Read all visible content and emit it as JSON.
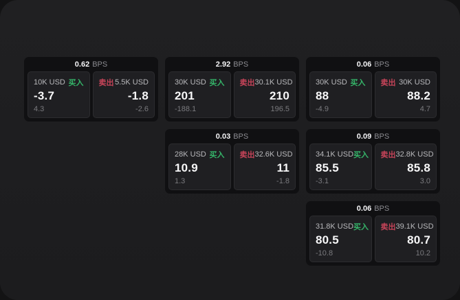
{
  "labels": {
    "bps_unit": "BPS",
    "buy": "买入",
    "sell": "卖出"
  },
  "colors": {
    "buy_green": "#35b469",
    "sell_red": "#c74459",
    "window_bg": "#1e1e20",
    "card_bg": "#101012",
    "panel_bg": "#1f1f22",
    "value_white": "#f7f7f8",
    "muted_gray": "#7a7a7e"
  },
  "cards": [
    {
      "bps": "0.62",
      "buy": {
        "amount": "10K USD",
        "value": "-3.7",
        "sub": "4.3"
      },
      "sell": {
        "amount": "5.5K USD",
        "value": "-1.8",
        "sub": "-2.6"
      }
    },
    {
      "bps": "2.92",
      "buy": {
        "amount": "30K USD",
        "value": "201",
        "sub": "-188.1"
      },
      "sell": {
        "amount": "30.1K USD",
        "value": "210",
        "sub": "196.5"
      }
    },
    {
      "bps": "0.03",
      "buy": {
        "amount": "28K USD",
        "value": "10.9",
        "sub": "1.3"
      },
      "sell": {
        "amount": "32.6K USD",
        "value": "11",
        "sub": "-1.8"
      }
    },
    {
      "bps": "0.06",
      "buy": {
        "amount": "30K USD",
        "value": "88",
        "sub": "-4.9"
      },
      "sell": {
        "amount": "30K USD",
        "value": "88.2",
        "sub": "4.7"
      }
    },
    {
      "bps": "0.09",
      "buy": {
        "amount": "34.1K USD",
        "value": "85.5",
        "sub": "-3.1"
      },
      "sell": {
        "amount": "32.8K USD",
        "value": "85.8",
        "sub": "3.0"
      }
    },
    {
      "bps": "0.06",
      "buy": {
        "amount": "31.8K USD",
        "value": "80.5",
        "sub": "-10.8"
      },
      "sell": {
        "amount": "39.1K USD",
        "value": "80.7",
        "sub": "10.2"
      }
    }
  ]
}
